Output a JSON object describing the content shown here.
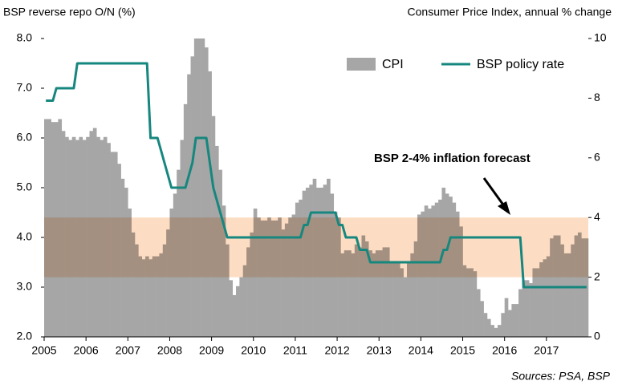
{
  "chart_data": {
    "type": "bar-line",
    "y_title": "BSP reverse repo O/N (%)",
    "y2_title": "Consumer Price Index, annual % change",
    "annotation": "BSP 2-4% inflation forecast",
    "source": "Sources: PSA, BSP",
    "band": {
      "axis": "y2",
      "range": [
        2,
        4
      ],
      "color": "#fcddc4"
    },
    "categories": [
      "2005",
      null,
      null,
      null,
      null,
      null,
      null,
      null,
      null,
      null,
      null,
      null,
      "2006",
      null,
      null,
      null,
      null,
      null,
      null,
      null,
      null,
      null,
      null,
      null,
      "2007",
      null,
      null,
      null,
      null,
      null,
      null,
      null,
      null,
      null,
      null,
      null,
      "2008",
      null,
      null,
      null,
      null,
      null,
      null,
      null,
      null,
      null,
      null,
      null,
      "2009",
      null,
      null,
      null,
      null,
      null,
      null,
      null,
      null,
      null,
      null,
      null,
      "2010",
      null,
      null,
      null,
      null,
      null,
      null,
      null,
      null,
      null,
      null,
      null,
      "2011",
      null,
      null,
      null,
      null,
      null,
      null,
      null,
      null,
      null,
      null,
      null,
      "2012",
      null,
      null,
      null,
      null,
      null,
      null,
      null,
      null,
      null,
      null,
      null,
      "2013",
      null,
      null,
      null,
      null,
      null,
      null,
      null,
      null,
      null,
      null,
      null,
      "2014",
      null,
      null,
      null,
      null,
      null,
      null,
      null,
      null,
      null,
      null,
      null,
      "2015",
      null,
      null,
      null,
      null,
      null,
      null,
      null,
      null,
      null,
      null,
      null,
      "2016",
      null,
      null,
      null,
      null,
      null,
      null,
      null,
      null,
      null,
      null,
      null,
      "2017",
      null,
      null,
      null,
      null,
      null,
      null,
      null,
      null,
      null,
      null,
      null
    ],
    "series": [
      {
        "name": "CPI",
        "type": "bar",
        "axis": "y2",
        "color": "#a6a6a6",
        "values": [
          7.3,
          7.3,
          7.2,
          7.2,
          7.3,
          6.9,
          6.7,
          6.6,
          6.7,
          6.6,
          6.7,
          6.6,
          6.7,
          6.9,
          7.0,
          6.7,
          6.6,
          6.7,
          6.5,
          6.2,
          6.2,
          5.8,
          5.3,
          5.0,
          4.3,
          3.5,
          3.1,
          2.7,
          2.6,
          2.7,
          2.6,
          2.7,
          2.7,
          2.8,
          3.1,
          3.6,
          4.3,
          4.8,
          5.6,
          6.6,
          7.8,
          8.8,
          9.4,
          10.0,
          10.0,
          10.0,
          9.7,
          8.9,
          7.4,
          6.4,
          5.6,
          4.4,
          3.1,
          1.9,
          1.4,
          1.7,
          2.0,
          2.4,
          3.0,
          3.5,
          4.3,
          4.0,
          3.9,
          3.9,
          4.0,
          3.9,
          3.9,
          4.0,
          3.6,
          3.8,
          4.0,
          4.1,
          4.5,
          4.6,
          4.9,
          5.0,
          5.1,
          5.3,
          5.0,
          5.0,
          5.1,
          5.3,
          4.8,
          4.2,
          4.0,
          2.8,
          2.9,
          2.9,
          2.8,
          3.1,
          3.0,
          3.4,
          3.2,
          2.9,
          2.8,
          2.9,
          2.9,
          3.0,
          3.0,
          2.5,
          2.5,
          2.5,
          2.3,
          2.0,
          2.5,
          2.8,
          3.2,
          4.1,
          4.2,
          4.4,
          4.3,
          4.4,
          4.5,
          4.6,
          5.0,
          4.8,
          4.7,
          4.5,
          4.2,
          3.7,
          2.4,
          2.3,
          2.3,
          2.2,
          1.6,
          1.2,
          0.8,
          0.6,
          0.4,
          0.3,
          0.4,
          0.8,
          1.3,
          0.9,
          1.1,
          1.1,
          1.6,
          1.9,
          1.9,
          1.8,
          2.3,
          2.3,
          2.5,
          2.6,
          2.7,
          3.3,
          3.4,
          3.4,
          3.1,
          2.8,
          2.8,
          3.1,
          3.4,
          3.5,
          3.3,
          3.3
        ]
      },
      {
        "name": "BSP policy rate",
        "type": "line",
        "axis": "y",
        "color": "#16877e",
        "values": [
          6.75,
          6.75,
          6.75,
          7.0,
          7.0,
          7.0,
          7.0,
          7.0,
          7.0,
          7.5,
          7.5,
          7.5,
          7.5,
          7.5,
          7.5,
          7.5,
          7.5,
          7.5,
          7.5,
          7.5,
          7.5,
          7.5,
          7.5,
          7.5,
          7.5,
          7.5,
          7.5,
          7.5,
          7.5,
          7.5,
          6.0,
          6.0,
          6.0,
          5.75,
          5.5,
          5.25,
          5.0,
          5.0,
          5.0,
          5.0,
          5.0,
          5.25,
          5.5,
          6.0,
          6.0,
          6.0,
          6.0,
          5.5,
          5.0,
          4.75,
          4.5,
          4.25,
          4.0,
          4.0,
          4.0,
          4.0,
          4.0,
          4.0,
          4.0,
          4.0,
          4.0,
          4.0,
          4.0,
          4.0,
          4.0,
          4.0,
          4.0,
          4.0,
          4.0,
          4.0,
          4.0,
          4.0,
          4.0,
          4.0,
          4.25,
          4.25,
          4.5,
          4.5,
          4.5,
          4.5,
          4.5,
          4.5,
          4.5,
          4.5,
          4.25,
          4.25,
          4.0,
          4.0,
          4.0,
          4.0,
          3.75,
          3.75,
          3.75,
          3.5,
          3.5,
          3.5,
          3.5,
          3.5,
          3.5,
          3.5,
          3.5,
          3.5,
          3.5,
          3.5,
          3.5,
          3.5,
          3.5,
          3.5,
          3.5,
          3.5,
          3.5,
          3.5,
          3.5,
          3.5,
          3.75,
          3.75,
          4.0,
          4.0,
          4.0,
          4.0,
          4.0,
          4.0,
          4.0,
          4.0,
          4.0,
          4.0,
          4.0,
          4.0,
          4.0,
          4.0,
          4.0,
          4.0,
          4.0,
          4.0,
          4.0,
          4.0,
          4.0,
          3.0,
          3.0,
          3.0,
          3.0,
          3.0,
          3.0,
          3.0,
          3.0,
          3.0,
          3.0,
          3.0,
          3.0,
          3.0,
          3.0,
          3.0,
          3.0,
          3.0,
          3.0,
          3.0
        ]
      }
    ],
    "ylim": [
      2,
      8
    ],
    "yticks": [
      {
        "value": 2,
        "label": "2.0"
      },
      {
        "value": 3,
        "label": "3.0"
      },
      {
        "value": 4,
        "label": "4.0"
      },
      {
        "value": 5,
        "label": "5.0"
      },
      {
        "value": 6,
        "label": "6.0"
      },
      {
        "value": 7,
        "label": "7.0"
      },
      {
        "value": 8,
        "label": "8.0"
      }
    ],
    "y2lim": [
      0,
      10
    ],
    "y2ticks": [
      0,
      2,
      4,
      6,
      8,
      10
    ],
    "legend": "top-right"
  }
}
